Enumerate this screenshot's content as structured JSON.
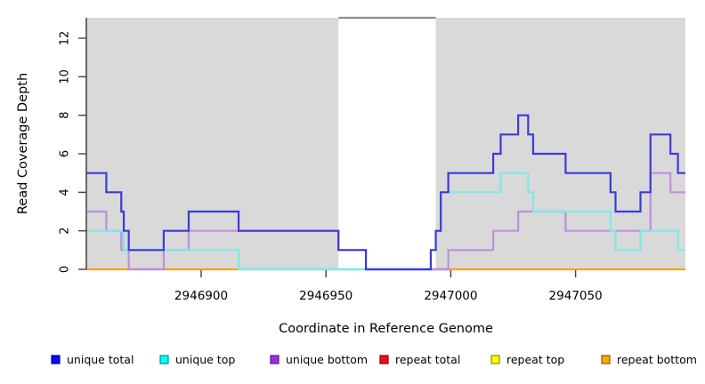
{
  "figure": {
    "background_color": "#ffffff",
    "band_color": "#d9d9d9",
    "axis_color": "#404040",
    "gap_cap_color": "#8f8f8f"
  },
  "chart_data": {
    "type": "line",
    "subtype": "step",
    "title": "",
    "xlabel": "Coordinate in Reference Genome",
    "ylabel": "Read Coverage Depth",
    "xlim": [
      2946854,
      2947094
    ],
    "ylim": [
      0,
      13
    ],
    "x_ticks": [
      "2946900",
      "2946950",
      "2947000",
      "2947050"
    ],
    "x_tick_values": [
      2946900,
      2946950,
      2947000,
      2947050
    ],
    "y_ticks": [
      "0",
      "2",
      "4",
      "6",
      "8",
      "10",
      "12"
    ],
    "y_tick_values": [
      0,
      2,
      4,
      6,
      8,
      10,
      12
    ],
    "grid": false,
    "legend_position": "bottom",
    "shaded_regions": [
      {
        "x1": 2946854,
        "x2": 2946955
      },
      {
        "x1": 2946994,
        "x2": 2947094
      }
    ],
    "gap_cap_line": {
      "x1": 2946955,
      "x2": 2946994
    },
    "series": [
      {
        "name": "unique total",
        "line_color": "#3b3bd8",
        "steps": [
          [
            2946854,
            5
          ],
          [
            2946862,
            4
          ],
          [
            2946868,
            3
          ],
          [
            2946869,
            2
          ],
          [
            2946871,
            1
          ],
          [
            2946885,
            2
          ],
          [
            2946895,
            3
          ],
          [
            2946915,
            2
          ],
          [
            2946955,
            1
          ],
          [
            2946966,
            0
          ],
          [
            2946992,
            1
          ],
          [
            2946994,
            2
          ],
          [
            2946996,
            4
          ],
          [
            2946999,
            5
          ],
          [
            2947017,
            6
          ],
          [
            2947020,
            7
          ],
          [
            2947027,
            8
          ],
          [
            2947031,
            7
          ],
          [
            2947033,
            6
          ],
          [
            2947046,
            5
          ],
          [
            2947064,
            4
          ],
          [
            2947066,
            3
          ],
          [
            2947076,
            4
          ],
          [
            2947080,
            7
          ],
          [
            2947088,
            6
          ],
          [
            2947091,
            5
          ]
        ]
      },
      {
        "name": "unique top",
        "line_color": "#7de9e9",
        "steps": [
          [
            2946854,
            2
          ],
          [
            2946869,
            1
          ],
          [
            2946915,
            0
          ],
          [
            2946992,
            1
          ],
          [
            2946994,
            2
          ],
          [
            2946996,
            4
          ],
          [
            2947020,
            5
          ],
          [
            2947031,
            4
          ],
          [
            2947033,
            3
          ],
          [
            2947064,
            2
          ],
          [
            2947066,
            1
          ],
          [
            2947076,
            2
          ],
          [
            2947091,
            1
          ]
        ]
      },
      {
        "name": "unique bottom",
        "line_color": "#c08fdb",
        "steps": [
          [
            2946854,
            3
          ],
          [
            2946862,
            2
          ],
          [
            2946868,
            1
          ],
          [
            2946871,
            0
          ],
          [
            2946885,
            1
          ],
          [
            2946895,
            2
          ],
          [
            2946955,
            1
          ],
          [
            2946966,
            0
          ],
          [
            2946999,
            1
          ],
          [
            2947017,
            2
          ],
          [
            2947027,
            3
          ],
          [
            2947046,
            2
          ],
          [
            2947080,
            5
          ],
          [
            2947088,
            4
          ]
        ]
      },
      {
        "name": "repeat total",
        "line_color": "#cc2e50",
        "steps": [
          [
            2946854,
            0
          ]
        ]
      },
      {
        "name": "repeat top",
        "line_color": "#e8e84a",
        "steps": [
          [
            2946854,
            0
          ]
        ]
      },
      {
        "name": "repeat bottom",
        "line_color": "#ff9e1b",
        "steps": [
          [
            2946854,
            0
          ]
        ]
      }
    ],
    "baseline_overlap_segments": [
      {
        "x1": 2946854,
        "x2": 2946871,
        "color": "#ff9e1b"
      },
      {
        "x1": 2946871,
        "x2": 2946885,
        "color": "#dc6fa0"
      },
      {
        "x1": 2946885,
        "x2": 2946915,
        "color": "#ff9e1b"
      },
      {
        "x1": 2946915,
        "x2": 2946966,
        "color": "#79be79"
      },
      {
        "x1": 2946966,
        "x2": 2946992,
        "color": "#4a3fd2"
      },
      {
        "x1": 2946992,
        "x2": 2946999,
        "color": "#cc2e50"
      },
      {
        "x1": 2946999,
        "x2": 2947094,
        "color": "#ff9e1b"
      }
    ]
  },
  "legend": {
    "items": [
      {
        "label": "unique total",
        "fill": "#0b0bea",
        "border": "#00008b"
      },
      {
        "label": "unique top",
        "fill": "#00ffff",
        "border": "#008b8b"
      },
      {
        "label": "unique bottom",
        "fill": "#a12be0",
        "border": "#551a8b"
      },
      {
        "label": "repeat total",
        "fill": "#ee1111",
        "border": "#8b0000"
      },
      {
        "label": "repeat top",
        "fill": "#ffff00",
        "border": "#8b8b00"
      },
      {
        "label": "repeat bottom",
        "fill": "#ffa513",
        "border": "#8b5a00"
      }
    ]
  }
}
